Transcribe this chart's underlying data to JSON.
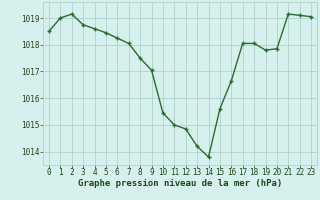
{
  "x": [
    0,
    1,
    2,
    3,
    4,
    5,
    6,
    7,
    8,
    9,
    10,
    11,
    12,
    13,
    14,
    15,
    16,
    17,
    18,
    19,
    20,
    21,
    22,
    23
  ],
  "y": [
    1018.5,
    1019.0,
    1019.15,
    1018.75,
    1018.6,
    1018.45,
    1018.25,
    1018.05,
    1017.5,
    1017.05,
    1015.45,
    1015.0,
    1014.85,
    1014.2,
    1013.8,
    1015.6,
    1016.65,
    1018.05,
    1018.05,
    1017.8,
    1017.85,
    1019.15,
    1019.1,
    1019.05
  ],
  "line_color": "#2d6a2d",
  "marker": "+",
  "marker_size": 3,
  "marker_lw": 1.0,
  "line_width": 1.0,
  "bg_color": "#d6f0ee",
  "grid_color": "#b0d0cc",
  "xlabel": "Graphe pression niveau de la mer (hPa)",
  "xlabel_color": "#1a4a1a",
  "xlabel_fontsize": 6.5,
  "tick_color": "#1a4a1a",
  "tick_fontsize": 5.5,
  "ylim": [
    1013.5,
    1019.6
  ],
  "xlim": [
    -0.5,
    23.5
  ],
  "yticks": [
    1014,
    1015,
    1016,
    1017,
    1018,
    1019
  ],
  "xticks": [
    0,
    1,
    2,
    3,
    4,
    5,
    6,
    7,
    8,
    9,
    10,
    11,
    12,
    13,
    14,
    15,
    16,
    17,
    18,
    19,
    20,
    21,
    22,
    23
  ]
}
